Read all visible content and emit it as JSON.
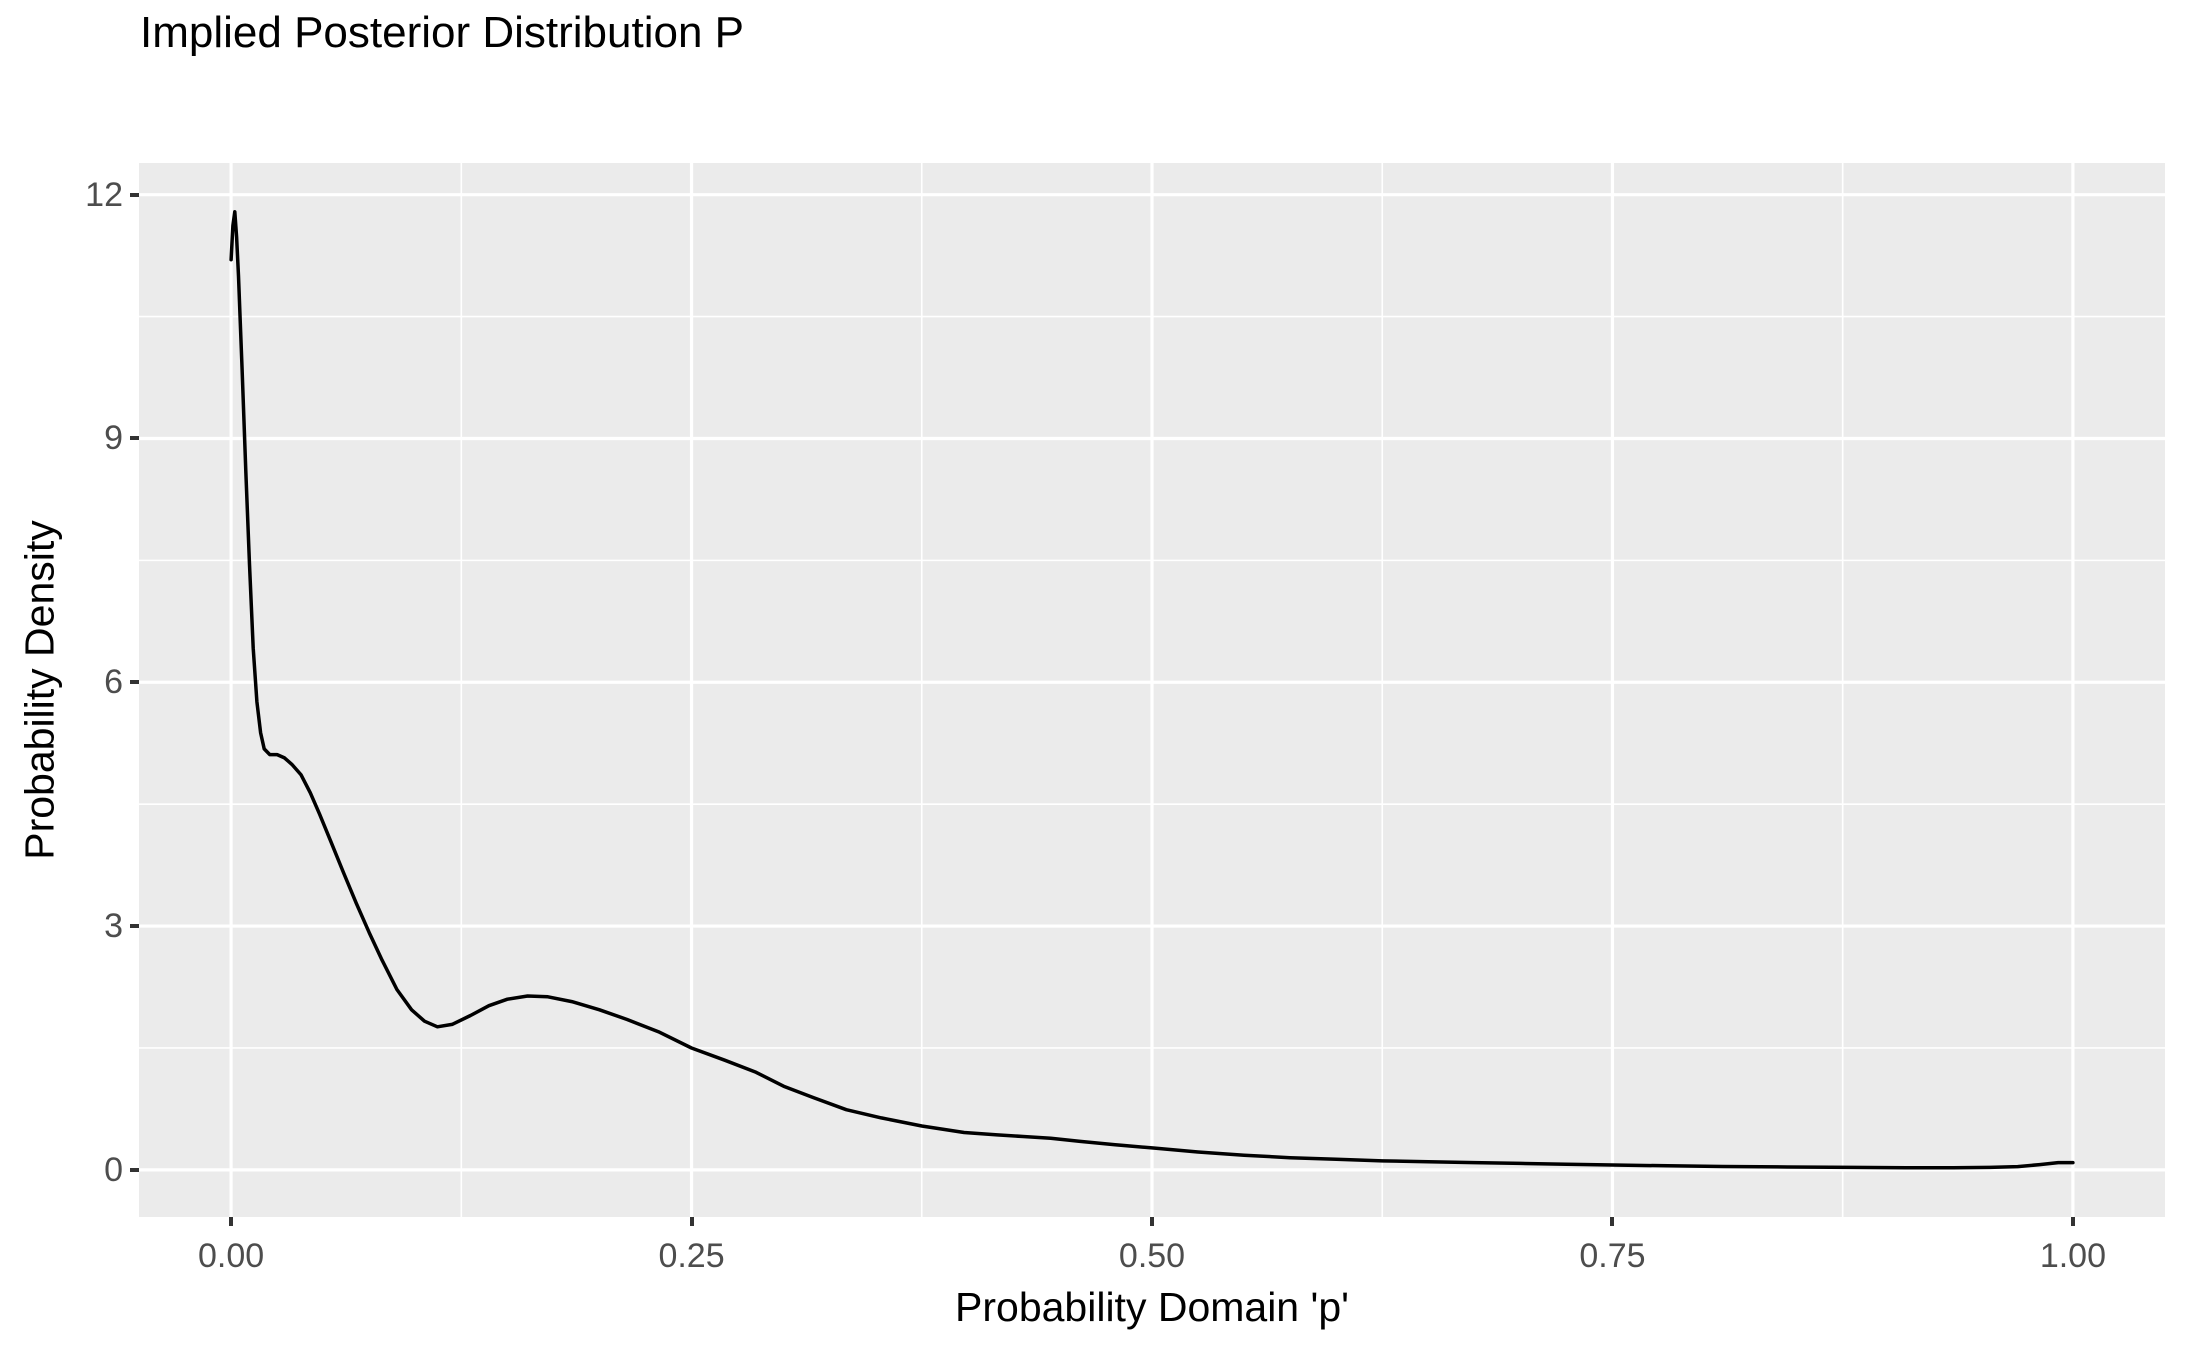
{
  "chart_data": {
    "type": "line",
    "title": "Implied Posterior Distribution P",
    "xlabel": "Probability Domain 'p'",
    "ylabel": "Probability Density",
    "xlim": [
      -0.05,
      1.05
    ],
    "ylim": [
      -0.58,
      12.39
    ],
    "x_tick_labels": [
      "0.00",
      "0.25",
      "0.50",
      "0.75",
      "1.00"
    ],
    "x_tick_values": [
      0,
      0.25,
      0.5,
      0.75,
      1.0
    ],
    "y_tick_labels": [
      "0",
      "3",
      "6",
      "9",
      "12"
    ],
    "y_tick_values": [
      0,
      3,
      6,
      9,
      12
    ],
    "grid": {
      "visible": true,
      "minor_x": [
        0.125,
        0.375,
        0.625,
        0.875
      ],
      "minor_y": [
        1.5,
        4.5,
        7.5,
        10.5
      ]
    },
    "legend": "none",
    "series": [
      {
        "name": "posterior-density-curve",
        "color": "#000000",
        "points": [
          [
            0.0,
            11.2
          ],
          [
            0.001,
            11.62
          ],
          [
            0.002,
            11.79
          ],
          [
            0.003,
            11.48
          ],
          [
            0.004,
            11.0
          ],
          [
            0.005,
            10.42
          ],
          [
            0.006,
            9.85
          ],
          [
            0.008,
            8.6
          ],
          [
            0.01,
            7.45
          ],
          [
            0.012,
            6.42
          ],
          [
            0.014,
            5.76
          ],
          [
            0.016,
            5.38
          ],
          [
            0.018,
            5.18
          ],
          [
            0.021,
            5.11
          ],
          [
            0.025,
            5.11
          ],
          [
            0.029,
            5.07
          ],
          [
            0.033,
            4.99
          ],
          [
            0.038,
            4.86
          ],
          [
            0.043,
            4.64
          ],
          [
            0.048,
            4.38
          ],
          [
            0.054,
            4.05
          ],
          [
            0.061,
            3.66
          ],
          [
            0.068,
            3.28
          ],
          [
            0.075,
            2.92
          ],
          [
            0.082,
            2.58
          ],
          [
            0.09,
            2.22
          ],
          [
            0.098,
            1.97
          ],
          [
            0.105,
            1.83
          ],
          [
            0.112,
            1.76
          ],
          [
            0.12,
            1.79
          ],
          [
            0.13,
            1.9
          ],
          [
            0.14,
            2.02
          ],
          [
            0.15,
            2.1
          ],
          [
            0.161,
            2.14
          ],
          [
            0.172,
            2.13
          ],
          [
            0.185,
            2.07
          ],
          [
            0.2,
            1.97
          ],
          [
            0.215,
            1.85
          ],
          [
            0.232,
            1.7
          ],
          [
            0.25,
            1.5
          ],
          [
            0.268,
            1.35
          ],
          [
            0.285,
            1.2
          ],
          [
            0.3,
            1.03
          ],
          [
            0.316,
            0.89
          ],
          [
            0.334,
            0.74
          ],
          [
            0.353,
            0.64
          ],
          [
            0.375,
            0.54
          ],
          [
            0.398,
            0.46
          ],
          [
            0.416,
            0.43
          ],
          [
            0.43,
            0.41
          ],
          [
            0.445,
            0.39
          ],
          [
            0.461,
            0.35
          ],
          [
            0.48,
            0.31
          ],
          [
            0.5,
            0.27
          ],
          [
            0.525,
            0.22
          ],
          [
            0.55,
            0.18
          ],
          [
            0.575,
            0.15
          ],
          [
            0.6,
            0.13
          ],
          [
            0.625,
            0.11
          ],
          [
            0.65,
            0.1
          ],
          [
            0.675,
            0.09
          ],
          [
            0.7,
            0.08
          ],
          [
            0.725,
            0.07
          ],
          [
            0.75,
            0.06
          ],
          [
            0.78,
            0.05
          ],
          [
            0.81,
            0.042
          ],
          [
            0.845,
            0.035
          ],
          [
            0.88,
            0.03
          ],
          [
            0.91,
            0.027
          ],
          [
            0.935,
            0.025
          ],
          [
            0.955,
            0.03
          ],
          [
            0.97,
            0.04
          ],
          [
            0.982,
            0.065
          ],
          [
            0.992,
            0.09
          ],
          [
            1.0,
            0.09
          ]
        ]
      }
    ]
  },
  "style": {
    "panel_background": "#EBEBEB",
    "grid_color": "#FFFFFF",
    "tick_label_color": "#4D4D4D",
    "tick_mark_color": "#333333",
    "line_color": "#000000",
    "title_color": "#000000"
  }
}
